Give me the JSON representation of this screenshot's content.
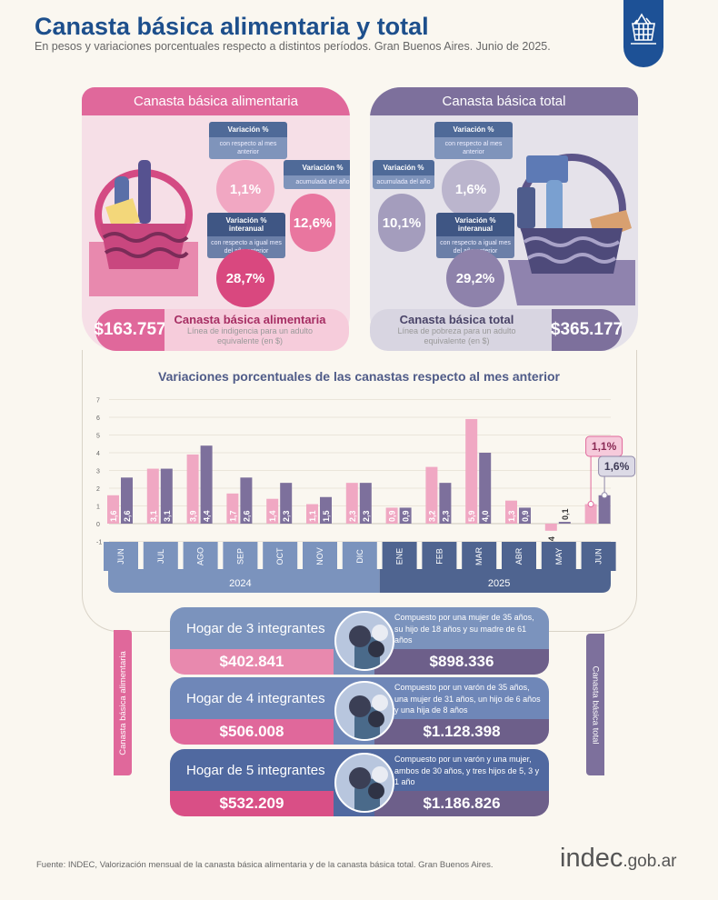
{
  "header": {
    "title": "Canasta básica alimentaria y total",
    "subtitle": "En pesos y variaciones porcentuales respecto a distintos períodos. Gran Buenos Aires. Junio de 2025.",
    "badge_icon": "basket-icon"
  },
  "colors": {
    "cba": "#e0689b",
    "cbt": "#7d709c",
    "navy": "#1d5196"
  },
  "cba": {
    "title": "Canasta básica alimentaria",
    "monthly": {
      "label": "Variación %",
      "sub": "con respecto al mes anterior",
      "value": "1,1%"
    },
    "ytd": {
      "label": "Variación %",
      "sub": "acumulada del año",
      "value": "12,6%"
    },
    "yoy": {
      "label": "Variación % interanual",
      "sub": "con respecto a igual mes del año anterior",
      "value": "28,7%"
    },
    "price": "$163.757",
    "price_title": "Canasta básica alimentaria",
    "price_sub": "Línea de indigencia para un adulto equivalente (en $)"
  },
  "cbt": {
    "title": "Canasta básica total",
    "monthly": {
      "label": "Variación %",
      "sub": "con respecto al mes anterior",
      "value": "1,6%"
    },
    "ytd": {
      "label": "Variación %",
      "sub": "acumulada del año",
      "value": "10,1%"
    },
    "yoy": {
      "label": "Variación % interanual",
      "sub": "con respecto a igual mes del año anterior",
      "value": "29,2%"
    },
    "price": "$365.177",
    "price_title": "Canasta básica total",
    "price_sub": "Línea de pobreza para un adulto equivalente (en $)"
  },
  "chart_data": {
    "type": "bar",
    "title": "Variaciones porcentuales de las canastas respecto al mes anterior",
    "categories": [
      "JUN",
      "JUL",
      "AGO",
      "SEP",
      "OCT",
      "NOV",
      "DIC",
      "ENE",
      "FEB",
      "MAR",
      "ABR",
      "MAY",
      "JUN"
    ],
    "years": [
      {
        "label": "2024",
        "months": 7
      },
      {
        "label": "2025",
        "months": 6
      }
    ],
    "series": [
      {
        "values": [
          1.6,
          3.1,
          3.9,
          1.7,
          1.4,
          1.1,
          2.3,
          0.9,
          3.2,
          5.9,
          1.3,
          -0.4,
          1.1
        ],
        "labels": [
          "1,6",
          "3,1",
          "3,9",
          "1,7",
          "1,4",
          "1,1",
          "2,3",
          "0,9",
          "3,2",
          "5,9",
          "1,3",
          "-0,4",
          ""
        ],
        "color": "#f0a8c3"
      },
      {
        "values": [
          2.6,
          3.1,
          4.4,
          2.6,
          2.3,
          1.5,
          2.3,
          0.9,
          2.3,
          4.0,
          0.9,
          0.1,
          1.6
        ],
        "labels": [
          "2,6",
          "3,1",
          "4,4",
          "2,6",
          "2,3",
          "1,5",
          "2,3",
          "0,9",
          "2,3",
          "4,0",
          "0,9",
          "0,1",
          ""
        ],
        "color": "#7d709c"
      }
    ],
    "callouts": [
      "1,1%",
      "1,6%"
    ],
    "yticks": [
      "-1",
      "0",
      "1",
      "2",
      "3",
      "4",
      "5",
      "6",
      "7"
    ],
    "ylim": [
      -1,
      7
    ],
    "grid": true
  },
  "households": [
    {
      "name": "Hogar de 3 integrantes",
      "desc": "Compuesto por una mujer de 35 años, su hijo de 18 años y su madre de 61 años",
      "cba": "$402.841",
      "cbt": "$898.336"
    },
    {
      "name": "Hogar de 4 integrantes",
      "desc": "Compuesto por un varón de 35 años, una mujer de 31 años, un hijo de 6 años y una hija de 8 años",
      "cba": "$506.008",
      "cbt": "$1.128.398"
    },
    {
      "name": "Hogar de 5 integrantes",
      "desc": "Compuesto por un varón y una mujer, ambos de 30 años, y tres hijos de 5, 3 y 1 año",
      "cba": "$532.209",
      "cbt": "$1.186.826"
    }
  ],
  "side": {
    "left": "Canasta básica alimentaria",
    "right": "Canasta básica total"
  },
  "footer": {
    "source": "Fuente: INDEC, Valorización mensual de la canasta básica alimentaria y de la canasta básica total. Gran Buenos Aires.",
    "logo": "indec",
    "logo_suffix": ".gob.ar"
  }
}
